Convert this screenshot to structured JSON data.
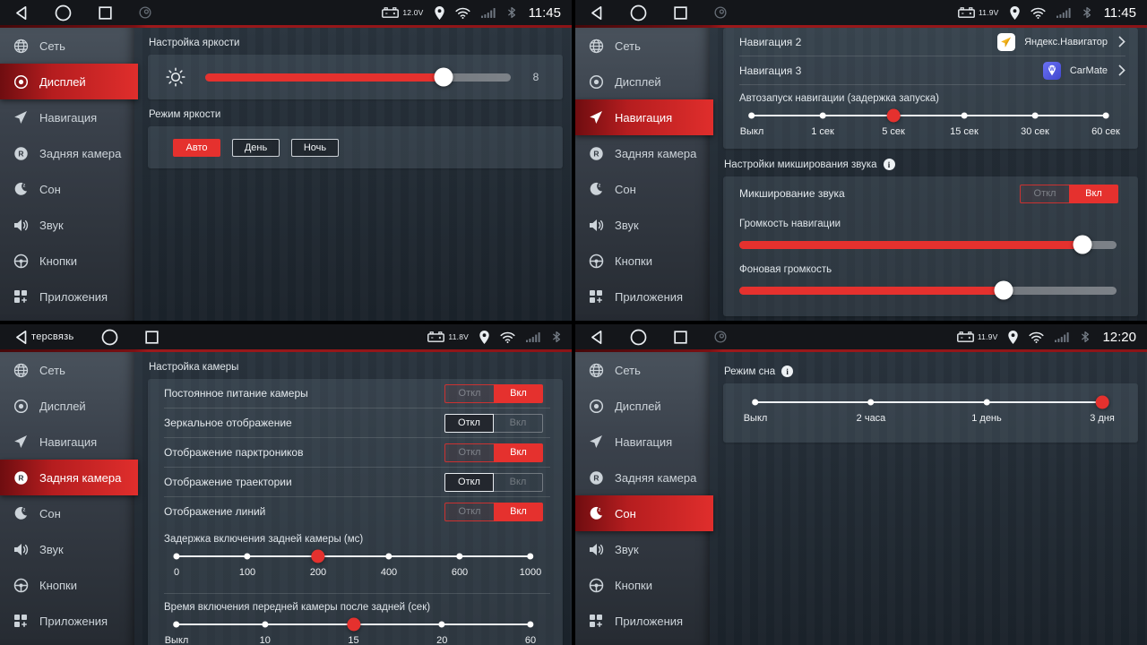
{
  "colors": {
    "accent_red": "#e5312e",
    "statusbar_bg": "#14161a",
    "selected_item_red": "#d8262a"
  },
  "toggle": {
    "off": "Откл",
    "on": "Вкл"
  },
  "statusbar_icons": [
    "back-icon",
    "home-icon",
    "recents-icon",
    "floating-widget-icon",
    "car-battery-icon",
    "gps-icon",
    "wifi-icon",
    "signal-icon",
    "bluetooth-icon"
  ],
  "sidebar_items": [
    {
      "id": "network",
      "icon": "globe",
      "label": "Сеть"
    },
    {
      "id": "display",
      "icon": "display",
      "label": "Дисплей"
    },
    {
      "id": "navigation",
      "icon": "navigation",
      "label": "Навигация"
    },
    {
      "id": "rear-camera",
      "icon": "rear-camera",
      "label": "Задняя камера"
    },
    {
      "id": "sleep",
      "icon": "sleep",
      "label": "Сон"
    },
    {
      "id": "sound",
      "icon": "sound",
      "label": "Звук"
    },
    {
      "id": "buttons",
      "icon": "steering-wheel",
      "label": "Кнопки"
    },
    {
      "id": "apps",
      "icon": "apps",
      "label": "Приложения"
    }
  ],
  "quadrants": [
    {
      "id": "display",
      "statusbar": {
        "voltage": "12.0V",
        "time": "11:45",
        "widget_icon": true
      },
      "selected_item": "Дисплей",
      "content": [
        {
          "kind": "label",
          "text": "Настройка яркости"
        },
        {
          "kind": "card",
          "blocks": [
            {
              "kind": "brightness",
              "icon": "brightness-sun",
              "fill_pct": 78,
              "value": "8"
            }
          ]
        },
        {
          "kind": "label",
          "text": "Режим яркости"
        },
        {
          "kind": "card",
          "blocks": [
            {
              "kind": "buttons",
              "buttons": [
                {
                  "label": "Авто",
                  "active": true
                },
                {
                  "label": "День",
                  "active": false
                },
                {
                  "label": "Ночь",
                  "active": false
                }
              ]
            }
          ]
        }
      ]
    },
    {
      "id": "navigation",
      "statusbar": {
        "voltage": "11.9V",
        "time": "11:45",
        "widget_icon": true
      },
      "selected_item": "Навигация",
      "content": [
        {
          "kind": "card",
          "blocks": [
            {
              "kind": "app-row",
              "label": "Навигация 2",
              "app": "Яндекс.Навигатор",
              "icon": "yandex-navigator"
            },
            {
              "kind": "divider"
            },
            {
              "kind": "app-row",
              "label": "Навигация 3",
              "app": "CarMate",
              "icon": "carmate"
            },
            {
              "kind": "divider"
            },
            {
              "kind": "ilabel",
              "text": "Автозапуск навигации (задержка запуска)"
            },
            {
              "kind": "dslider",
              "name": "nav-autostart-delay-slider",
              "stops": [
                "Выкл",
                "1 сек",
                "5 сек",
                "15 сек",
                "30 сек",
                "60 сек"
              ],
              "selected": 2
            }
          ]
        },
        {
          "kind": "label",
          "text": "Настройки микширования звука",
          "info": true
        },
        {
          "kind": "card",
          "blocks": [
            {
              "kind": "toggle-row",
              "label": "Микширование звука",
              "on": true
            },
            {
              "kind": "ilabel",
              "text": "Громкость навигации"
            },
            {
              "kind": "bar-slider",
              "name": "nav-volume-slider",
              "fill_pct": 91
            },
            {
              "kind": "ilabel",
              "text": "Фоновая громкость"
            },
            {
              "kind": "bar-slider",
              "name": "background-volume-slider",
              "fill_pct": 70
            },
            {
              "kind": "spacer",
              "h": 16
            }
          ]
        }
      ]
    },
    {
      "id": "rear-camera",
      "statusbar": {
        "voltage": "11.8V",
        "left_text": "терсвязь",
        "widget_icon": false
      },
      "selected_item": "Задняя камера",
      "content": [
        {
          "kind": "label",
          "text": "Настройка камеры"
        },
        {
          "kind": "card",
          "blocks": [
            {
              "kind": "toggle-row",
              "label": "Постоянное питание камеры",
              "on": true
            },
            {
              "kind": "divider"
            },
            {
              "kind": "toggle-row",
              "label": "Зеркальное отображение",
              "on": false
            },
            {
              "kind": "divider"
            },
            {
              "kind": "toggle-row",
              "label": "Отображение парктроников",
              "on": true
            },
            {
              "kind": "divider"
            },
            {
              "kind": "toggle-row",
              "label": "Отображение траектории",
              "on": false
            },
            {
              "kind": "divider"
            },
            {
              "kind": "toggle-row",
              "label": "Отображение линий",
              "on": true
            },
            {
              "kind": "ilabel",
              "text": "Задержка включения задней камеры (мс)"
            },
            {
              "kind": "dslider",
              "name": "rear-camera-delay-slider",
              "stops": [
                "0",
                "100",
                "200",
                "400",
                "600",
                "1000"
              ],
              "selected": 2
            },
            {
              "kind": "divider"
            },
            {
              "kind": "ilabel",
              "text": "Время включения передней камеры после задней (сек)"
            },
            {
              "kind": "dslider",
              "name": "front-camera-time-slider",
              "stops": [
                "Выкл",
                "10",
                "15",
                "20",
                "60"
              ],
              "selected": 2
            }
          ]
        }
      ]
    },
    {
      "id": "sleep",
      "statusbar": {
        "voltage": "11.9V",
        "time": "12:20",
        "widget_icon": true
      },
      "selected_item": "Сон",
      "content": [
        {
          "kind": "label",
          "text": "Режим сна",
          "info": true
        },
        {
          "kind": "card",
          "blocks": [
            {
              "kind": "dslider",
              "name": "sleep-mode-slider",
              "stops": [
                "Выкл",
                "2 часа",
                "1 день",
                "3 дня"
              ],
              "selected": 3
            }
          ]
        }
      ]
    }
  ]
}
